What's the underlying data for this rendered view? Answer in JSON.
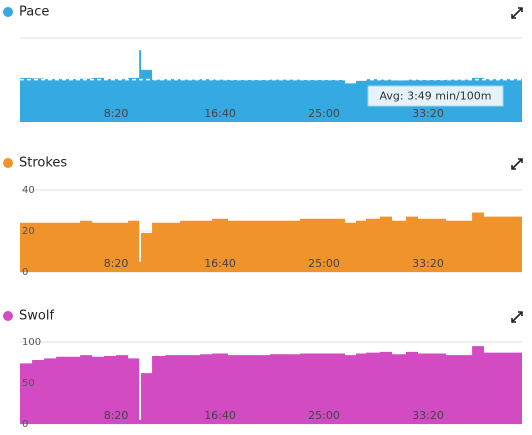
{
  "chart_data": [
    {
      "type": "area",
      "title": "Pace",
      "color": "#35a9e1",
      "x": [
        38,
        96,
        154,
        212,
        327,
        385,
        442,
        500,
        558,
        611,
        620,
        635,
        673,
        736,
        808,
        904,
        962,
        1038,
        1096,
        1240,
        1385,
        1529,
        1601,
        1654,
        1702,
        1769,
        1827,
        1894,
        1952,
        2019,
        2087,
        2212,
        2269
      ],
      "values": [
        225,
        226,
        228,
        228,
        227,
        225,
        228,
        228,
        225,
        159,
        206,
        206,
        229,
        228,
        229,
        228,
        229,
        230,
        230,
        229,
        230,
        230,
        238,
        232,
        228,
        229,
        231,
        229,
        230,
        230,
        229,
        225,
        228
      ],
      "xlim": [
        38,
        2452
      ],
      "ylim": [
        330,
        130
      ],
      "xticks": [
        {
          "value": 500,
          "label": "8:20"
        },
        {
          "value": 1000,
          "label": "16:40"
        },
        {
          "value": 1500,
          "label": "25:00"
        },
        {
          "value": 2000,
          "label": "33:20"
        }
      ],
      "avg_value": 229,
      "annotation": "Avg: 3:49 min/100m"
    },
    {
      "type": "area",
      "title": "Strokes",
      "color": "#f0932a",
      "x": [
        38,
        96,
        154,
        212,
        327,
        385,
        442,
        500,
        558,
        611,
        620,
        635,
        673,
        736,
        808,
        904,
        962,
        1038,
        1096,
        1240,
        1385,
        1529,
        1601,
        1654,
        1702,
        1769,
        1827,
        1894,
        1952,
        2019,
        2087,
        2212,
        2269
      ],
      "values": [
        24,
        24,
        24,
        24,
        25,
        24,
        24,
        24,
        25,
        5,
        19,
        19,
        24,
        24,
        25,
        25,
        26,
        25,
        25,
        25,
        26,
        26,
        24,
        25,
        26,
        27,
        25,
        27,
        26,
        26,
        25,
        29,
        27
      ],
      "xlim": [
        38,
        2452
      ],
      "ylim": [
        0,
        40
      ],
      "yticks": [
        0,
        20,
        40
      ],
      "xticks": [
        {
          "value": 500,
          "label": "8:20"
        },
        {
          "value": 1000,
          "label": "16:40"
        },
        {
          "value": 1500,
          "label": "25:00"
        },
        {
          "value": 2000,
          "label": "33:20"
        }
      ]
    },
    {
      "type": "area",
      "title": "Swolf",
      "color": "#d24bc3",
      "x": [
        38,
        96,
        154,
        212,
        327,
        385,
        442,
        500,
        558,
        611,
        620,
        635,
        673,
        736,
        808,
        904,
        962,
        1038,
        1096,
        1240,
        1385,
        1529,
        1601,
        1654,
        1702,
        1769,
        1827,
        1894,
        1952,
        2019,
        2087,
        2212,
        2269
      ],
      "values": [
        74,
        78,
        80,
        82,
        84,
        82,
        83,
        84,
        80,
        5,
        62,
        62,
        83,
        84,
        84,
        85,
        86,
        84,
        84,
        85,
        86,
        86,
        84,
        86,
        87,
        88,
        85,
        88,
        86,
        86,
        84,
        95,
        87
      ],
      "xlim": [
        38,
        2452
      ],
      "ylim": [
        0,
        100
      ],
      "yticks": [
        0,
        50,
        100
      ],
      "xticks": [
        {
          "value": 500,
          "label": "8:20"
        },
        {
          "value": 1000,
          "label": "16:40"
        },
        {
          "value": 1500,
          "label": "25:00"
        },
        {
          "value": 2000,
          "label": "33:20"
        }
      ]
    }
  ]
}
